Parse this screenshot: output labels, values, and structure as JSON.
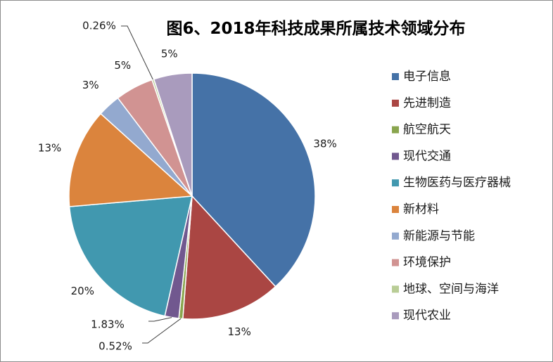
{
  "chart_data": {
    "type": "pie",
    "title": "图6、2018年科技成果所属技术领域分布",
    "legend_position": "right",
    "slices": [
      {
        "name": "电子信息",
        "value": 38,
        "label": "38%",
        "color": "#4572A7"
      },
      {
        "name": "先进制造",
        "value": 13,
        "label": "13%",
        "color": "#AA4643"
      },
      {
        "name": "航空航天",
        "value": 0.52,
        "label": "0.52%",
        "color": "#89A54E"
      },
      {
        "name": "现代交通",
        "value": 1.83,
        "label": "1.83%",
        "color": "#71588F"
      },
      {
        "name": "生物医药与医疗器械",
        "value": 20,
        "label": "20%",
        "color": "#4198AF"
      },
      {
        "name": "新材料",
        "value": 13,
        "label": "13%",
        "color": "#DB843D"
      },
      {
        "name": "新能源与节能",
        "value": 3,
        "label": "3%",
        "color": "#93A9CF"
      },
      {
        "name": "环境保护",
        "value": 5,
        "label": "5%",
        "color": "#D19392"
      },
      {
        "name": "地球、空间与海洋",
        "value": 0.26,
        "label": "0.26%",
        "color": "#B9CD96"
      },
      {
        "name": "现代农业",
        "value": 5,
        "label": "5%",
        "color": "#A99BBD"
      }
    ]
  }
}
